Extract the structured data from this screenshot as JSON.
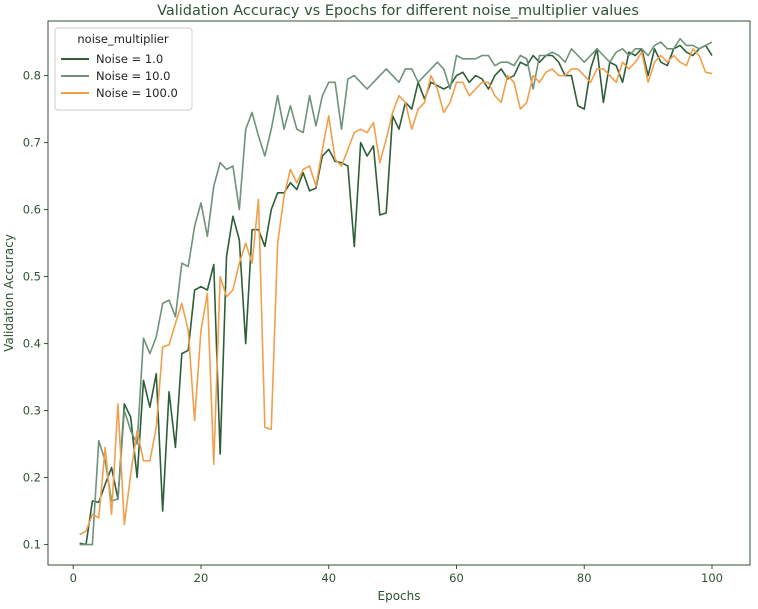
{
  "chart_data": {
    "type": "line",
    "title": "Validation Accuracy vs Epochs for different noise_multiplier values",
    "xlabel": "Epochs",
    "ylabel": "Validation Accuracy",
    "xlim": [
      -3.95,
      105.95
    ],
    "ylim": [
      0.0695,
      0.8815
    ],
    "xticks": [
      0,
      20,
      40,
      60,
      80,
      100
    ],
    "yticks": [
      0.1,
      0.2,
      0.3,
      0.4,
      0.5,
      0.6,
      0.7,
      0.8
    ],
    "grid": false,
    "legend": {
      "title": "noise_multiplier",
      "placement": "top-left"
    },
    "colors": {
      "axis": "#2f5233",
      "text": "#2f5233"
    },
    "x": [
      1,
      2,
      3,
      4,
      5,
      6,
      7,
      8,
      9,
      10,
      11,
      12,
      13,
      14,
      15,
      16,
      17,
      18,
      19,
      20,
      21,
      22,
      23,
      24,
      25,
      26,
      27,
      28,
      29,
      30,
      31,
      32,
      33,
      34,
      35,
      36,
      37,
      38,
      39,
      40,
      41,
      42,
      43,
      44,
      45,
      46,
      47,
      48,
      49,
      50,
      51,
      52,
      53,
      54,
      55,
      56,
      57,
      58,
      59,
      60,
      61,
      62,
      63,
      64,
      65,
      66,
      67,
      68,
      69,
      70,
      71,
      72,
      73,
      74,
      75,
      76,
      77,
      78,
      79,
      80,
      81,
      82,
      83,
      84,
      85,
      86,
      87,
      88,
      89,
      90,
      91,
      92,
      93,
      94,
      95,
      96,
      97,
      98,
      99,
      100
    ],
    "series": [
      {
        "name": "Noise = 1.0",
        "color": "#2e5e37",
        "values": [
          0.102,
          0.1,
          0.165,
          0.163,
          0.19,
          0.215,
          0.168,
          0.31,
          0.29,
          0.2,
          0.345,
          0.305,
          0.355,
          0.15,
          0.328,
          0.245,
          0.385,
          0.39,
          0.48,
          0.485,
          0.48,
          0.518,
          0.235,
          0.53,
          0.59,
          0.555,
          0.4,
          0.57,
          0.57,
          0.545,
          0.6,
          0.625,
          0.625,
          0.64,
          0.63,
          0.655,
          0.628,
          0.632,
          0.68,
          0.69,
          0.672,
          0.67,
          0.665,
          0.545,
          0.7,
          0.68,
          0.695,
          0.592,
          0.595,
          0.74,
          0.72,
          0.76,
          0.75,
          0.79,
          0.765,
          0.79,
          0.785,
          0.78,
          0.785,
          0.8,
          0.805,
          0.79,
          0.8,
          0.795,
          0.78,
          0.8,
          0.81,
          0.795,
          0.8,
          0.82,
          0.815,
          0.83,
          0.82,
          0.83,
          0.83,
          0.82,
          0.8,
          0.8,
          0.755,
          0.75,
          0.81,
          0.84,
          0.76,
          0.82,
          0.815,
          0.79,
          0.835,
          0.83,
          0.84,
          0.8,
          0.84,
          0.82,
          0.815,
          0.84,
          0.845,
          0.835,
          0.83,
          0.84,
          0.845,
          0.83
        ]
      },
      {
        "name": "Noise = 10.0",
        "color": "#6e927a",
        "values": [
          0.1,
          0.1,
          0.1,
          0.255,
          0.225,
          0.165,
          0.168,
          0.3,
          0.27,
          0.25,
          0.408,
          0.385,
          0.41,
          0.46,
          0.465,
          0.44,
          0.52,
          0.515,
          0.575,
          0.61,
          0.56,
          0.635,
          0.67,
          0.66,
          0.665,
          0.6,
          0.72,
          0.745,
          0.71,
          0.68,
          0.72,
          0.77,
          0.72,
          0.755,
          0.72,
          0.715,
          0.77,
          0.725,
          0.77,
          0.79,
          0.79,
          0.72,
          0.795,
          0.8,
          0.79,
          0.78,
          0.79,
          0.8,
          0.81,
          0.8,
          0.79,
          0.81,
          0.81,
          0.79,
          0.8,
          0.81,
          0.82,
          0.81,
          0.78,
          0.83,
          0.825,
          0.825,
          0.825,
          0.83,
          0.83,
          0.815,
          0.82,
          0.82,
          0.815,
          0.83,
          0.825,
          0.78,
          0.83,
          0.83,
          0.835,
          0.83,
          0.82,
          0.84,
          0.83,
          0.82,
          0.83,
          0.84,
          0.83,
          0.82,
          0.835,
          0.84,
          0.83,
          0.84,
          0.84,
          0.83,
          0.845,
          0.85,
          0.84,
          0.84,
          0.855,
          0.845,
          0.845,
          0.84,
          0.845,
          0.85
        ]
      },
      {
        "name": "Noise = 100.0",
        "color": "#f0a04b",
        "values": [
          0.115,
          0.12,
          0.145,
          0.14,
          0.245,
          0.145,
          0.31,
          0.13,
          0.205,
          0.27,
          0.225,
          0.225,
          0.275,
          0.395,
          0.398,
          0.43,
          0.46,
          0.42,
          0.285,
          0.42,
          0.475,
          0.22,
          0.5,
          0.47,
          0.48,
          0.52,
          0.55,
          0.52,
          0.615,
          0.275,
          0.272,
          0.55,
          0.62,
          0.66,
          0.64,
          0.66,
          0.665,
          0.635,
          0.69,
          0.74,
          0.675,
          0.665,
          0.69,
          0.715,
          0.72,
          0.715,
          0.73,
          0.67,
          0.705,
          0.745,
          0.77,
          0.76,
          0.72,
          0.75,
          0.76,
          0.8,
          0.78,
          0.745,
          0.76,
          0.79,
          0.79,
          0.77,
          0.78,
          0.79,
          0.79,
          0.77,
          0.76,
          0.8,
          0.79,
          0.75,
          0.76,
          0.8,
          0.79,
          0.805,
          0.81,
          0.8,
          0.8,
          0.81,
          0.81,
          0.8,
          0.79,
          0.81,
          0.81,
          0.8,
          0.79,
          0.82,
          0.81,
          0.82,
          0.835,
          0.79,
          0.82,
          0.83,
          0.82,
          0.83,
          0.82,
          0.815,
          0.84,
          0.83,
          0.805,
          0.803
        ]
      }
    ]
  }
}
